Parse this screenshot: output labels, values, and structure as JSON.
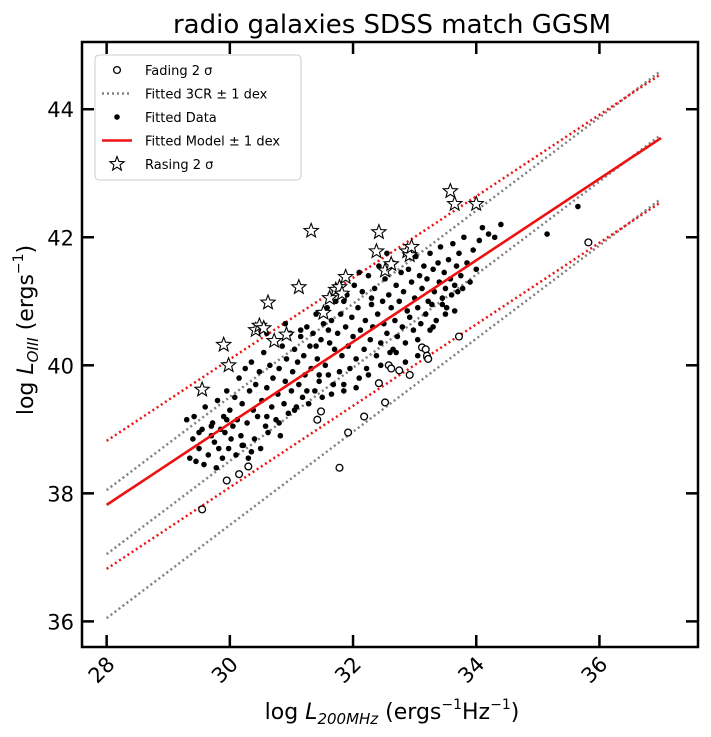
{
  "chart_data": {
    "type": "scatter",
    "title": "radio galaxies SDSS match GGSM",
    "xlabel": {
      "prefix": "log ",
      "symbol": "L",
      "subscript": "200MHz",
      "units": " (ergs",
      "exp1": "−1",
      "mid": "Hz",
      "exp2": "−1",
      "close": ")"
    },
    "ylabel": {
      "prefix": "log ",
      "symbol": "L",
      "subscript": "OIII",
      "units": " (ergs",
      "exp1": "−1",
      "close": ")"
    },
    "xlim": [
      27.6,
      37.6
    ],
    "ylim": [
      35.6,
      45.05
    ],
    "xticks": [
      28,
      30,
      32,
      34,
      36
    ],
    "yticks": [
      36,
      38,
      40,
      42,
      44
    ],
    "legend": {
      "position": "top-left",
      "entries": [
        {
          "label": "Fading 2 σ",
          "marker": "open-circle"
        },
        {
          "label": "Fitted 3CR ± 1 dex",
          "marker": "gray-dotted-line"
        },
        {
          "label": "Fitted Data",
          "marker": "filled-dot"
        },
        {
          "label": "Fitted Model ± 1 dex",
          "marker": "red-line"
        },
        {
          "label": "Rasing 2 σ",
          "marker": "star"
        }
      ]
    },
    "colors": {
      "model": "#ee1111",
      "cr3": "#808080",
      "points": "#000000"
    },
    "lines": {
      "model": {
        "x": [
          28,
          37
        ],
        "y": [
          37.82,
          43.55
        ],
        "offset": 1
      },
      "cr3": {
        "x": [
          28,
          37
        ],
        "y": [
          37.05,
          43.6
        ],
        "offset": 1
      }
    },
    "fading": [
      [
        29.55,
        37.75
      ],
      [
        29.95,
        38.2
      ],
      [
        30.15,
        38.3
      ],
      [
        30.3,
        38.42
      ],
      [
        31.42,
        39.15
      ],
      [
        31.48,
        39.28
      ],
      [
        31.78,
        38.4
      ],
      [
        31.92,
        38.95
      ],
      [
        32.18,
        39.2
      ],
      [
        32.42,
        39.72
      ],
      [
        32.52,
        39.42
      ],
      [
        32.58,
        40.0
      ],
      [
        32.62,
        39.95
      ],
      [
        32.75,
        39.92
      ],
      [
        32.92,
        39.85
      ],
      [
        33.12,
        40.28
      ],
      [
        33.18,
        40.25
      ],
      [
        33.2,
        40.15
      ],
      [
        33.22,
        40.1
      ],
      [
        33.72,
        40.45
      ],
      [
        35.82,
        41.92
      ]
    ],
    "rising": [
      [
        29.55,
        39.62
      ],
      [
        29.9,
        40.32
      ],
      [
        29.98,
        40.0
      ],
      [
        30.42,
        40.55
      ],
      [
        30.48,
        40.62
      ],
      [
        30.55,
        40.58
      ],
      [
        30.62,
        40.98
      ],
      [
        30.72,
        40.38
      ],
      [
        30.92,
        40.48
      ],
      [
        31.12,
        41.22
      ],
      [
        31.32,
        42.1
      ],
      [
        31.52,
        40.82
      ],
      [
        31.62,
        41.05
      ],
      [
        31.72,
        41.18
      ],
      [
        31.78,
        41.22
      ],
      [
        31.82,
        41.12
      ],
      [
        31.88,
        41.38
      ],
      [
        32.38,
        41.78
      ],
      [
        32.42,
        42.08
      ],
      [
        32.52,
        41.48
      ],
      [
        32.62,
        41.58
      ],
      [
        32.88,
        41.78
      ],
      [
        32.92,
        41.72
      ],
      [
        32.95,
        41.85
      ],
      [
        33.58,
        42.72
      ],
      [
        33.65,
        42.52
      ],
      [
        34.0,
        42.52
      ]
    ],
    "fitted": [
      [
        29.3,
        39.15
      ],
      [
        29.35,
        38.55
      ],
      [
        29.4,
        38.85
      ],
      [
        29.42,
        39.2
      ],
      [
        29.45,
        38.5
      ],
      [
        29.5,
        38.95
      ],
      [
        29.55,
        39.0
      ],
      [
        29.58,
        38.45
      ],
      [
        29.6,
        39.35
      ],
      [
        29.65,
        38.6
      ],
      [
        29.7,
        38.9
      ],
      [
        29.72,
        39.1
      ],
      [
        29.75,
        38.8
      ],
      [
        29.78,
        38.4
      ],
      [
        29.8,
        39.45
      ],
      [
        29.82,
        38.7
      ],
      [
        29.85,
        39.0
      ],
      [
        29.88,
        38.55
      ],
      [
        29.9,
        39.2
      ],
      [
        29.92,
        38.95
      ],
      [
        29.95,
        39.6
      ],
      [
        29.98,
        38.7
      ],
      [
        30.0,
        39.3
      ],
      [
        30.02,
        38.85
      ],
      [
        30.05,
        39.05
      ],
      [
        30.08,
        39.5
      ],
      [
        30.1,
        38.6
      ],
      [
        30.12,
        39.15
      ],
      [
        30.15,
        39.8
      ],
      [
        30.18,
        38.9
      ],
      [
        30.2,
        39.4
      ],
      [
        30.22,
        38.75
      ],
      [
        30.25,
        39.95
      ],
      [
        30.28,
        39.1
      ],
      [
        30.3,
        38.55
      ],
      [
        30.32,
        39.6
      ],
      [
        30.35,
        40.05
      ],
      [
        30.38,
        39.3
      ],
      [
        30.4,
        38.85
      ],
      [
        30.42,
        39.7
      ],
      [
        30.45,
        39.2
      ],
      [
        30.48,
        39.9
      ],
      [
        30.5,
        38.7
      ],
      [
        30.52,
        39.45
      ],
      [
        30.55,
        40.2
      ],
      [
        30.58,
        39.05
      ],
      [
        30.6,
        39.65
      ],
      [
        30.62,
        38.95
      ],
      [
        30.65,
        40.0
      ],
      [
        30.68,
        39.35
      ],
      [
        30.7,
        39.8
      ],
      [
        30.72,
        40.4
      ],
      [
        30.75,
        39.15
      ],
      [
        30.78,
        39.55
      ],
      [
        30.8,
        39.95
      ],
      [
        30.82,
        38.9
      ],
      [
        30.85,
        40.3
      ],
      [
        30.88,
        39.4
      ],
      [
        30.9,
        39.75
      ],
      [
        30.92,
        40.1
      ],
      [
        30.95,
        39.25
      ],
      [
        30.98,
        40.5
      ],
      [
        31.0,
        39.6
      ],
      [
        31.02,
        39.9
      ],
      [
        31.05,
        40.25
      ],
      [
        31.08,
        39.35
      ],
      [
        31.1,
        40.05
      ],
      [
        31.12,
        39.7
      ],
      [
        31.15,
        40.45
      ],
      [
        31.18,
        39.5
      ],
      [
        31.2,
        40.15
      ],
      [
        31.22,
        39.85
      ],
      [
        31.25,
        40.6
      ],
      [
        31.28,
        39.4
      ],
      [
        31.3,
        40.3
      ],
      [
        31.32,
        39.95
      ],
      [
        31.35,
        40.5
      ],
      [
        31.38,
        39.6
      ],
      [
        31.4,
        40.8
      ],
      [
        31.42,
        40.1
      ],
      [
        31.45,
        39.75
      ],
      [
        31.48,
        40.4
      ],
      [
        31.5,
        39.5
      ],
      [
        31.52,
        40.65
      ],
      [
        31.55,
        40.0
      ],
      [
        31.58,
        40.9
      ],
      [
        31.6,
        39.85
      ],
      [
        31.62,
        40.35
      ],
      [
        31.65,
        40.7
      ],
      [
        31.68,
        39.7
      ],
      [
        31.7,
        40.25
      ],
      [
        31.72,
        41.0
      ],
      [
        31.75,
        40.5
      ],
      [
        31.78,
        39.9
      ],
      [
        31.8,
        40.8
      ],
      [
        31.82,
        40.15
      ],
      [
        31.85,
        39.6
      ],
      [
        31.88,
        40.6
      ],
      [
        31.9,
        41.1
      ],
      [
        31.92,
        40.3
      ],
      [
        31.95,
        39.95
      ],
      [
        31.98,
        40.75
      ],
      [
        32.0,
        40.45
      ],
      [
        32.02,
        41.25
      ],
      [
        32.05,
        40.1
      ],
      [
        32.08,
        40.9
      ],
      [
        32.1,
        39.8
      ],
      [
        32.12,
        40.55
      ],
      [
        32.15,
        41.15
      ],
      [
        32.18,
        40.25
      ],
      [
        32.2,
        40.7
      ],
      [
        32.22,
        39.95
      ],
      [
        32.25,
        41.4
      ],
      [
        32.28,
        40.4
      ],
      [
        32.3,
        40.95
      ],
      [
        32.32,
        40.6
      ],
      [
        32.35,
        41.2
      ],
      [
        32.38,
        40.15
      ],
      [
        32.4,
        40.8
      ],
      [
        32.42,
        41.55
      ],
      [
        32.45,
        40.35
      ],
      [
        32.48,
        41.0
      ],
      [
        32.5,
        40.65
      ],
      [
        32.52,
        41.35
      ],
      [
        32.55,
        40.5
      ],
      [
        32.58,
        41.1
      ],
      [
        32.6,
        40.2
      ],
      [
        32.62,
        40.9
      ],
      [
        32.65,
        41.6
      ],
      [
        32.68,
        40.7
      ],
      [
        32.7,
        41.25
      ],
      [
        32.72,
        40.45
      ],
      [
        32.75,
        41.0
      ],
      [
        32.78,
        41.45
      ],
      [
        32.8,
        40.6
      ],
      [
        32.82,
        41.15
      ],
      [
        32.85,
        40.35
      ],
      [
        32.88,
        40.85
      ],
      [
        32.9,
        41.5
      ],
      [
        32.92,
        40.75
      ],
      [
        32.95,
        41.3
      ],
      [
        32.98,
        40.55
      ],
      [
        33.0,
        41.05
      ],
      [
        33.02,
        41.7
      ],
      [
        33.05,
        40.9
      ],
      [
        33.08,
        41.4
      ],
      [
        33.1,
        40.65
      ],
      [
        33.12,
        41.2
      ],
      [
        33.15,
        41.55
      ],
      [
        33.18,
        40.8
      ],
      [
        33.2,
        41.35
      ],
      [
        33.22,
        41.0
      ],
      [
        33.25,
        41.75
      ],
      [
        33.28,
        40.95
      ],
      [
        33.3,
        41.5
      ],
      [
        33.32,
        41.15
      ],
      [
        33.35,
        40.7
      ],
      [
        33.38,
        41.6
      ],
      [
        33.4,
        41.3
      ],
      [
        33.42,
        41.85
      ],
      [
        33.45,
        41.05
      ],
      [
        33.48,
        41.45
      ],
      [
        33.5,
        41.2
      ],
      [
        33.52,
        40.9
      ],
      [
        33.55,
        41.65
      ],
      [
        33.58,
        41.35
      ],
      [
        33.6,
        41.1
      ],
      [
        33.62,
        41.9
      ],
      [
        33.65,
        41.25
      ],
      [
        33.68,
        41.55
      ],
      [
        33.7,
        41.15
      ],
      [
        33.72,
        41.75
      ],
      [
        33.75,
        41.4
      ],
      [
        33.78,
        41.2
      ],
      [
        33.8,
        42.0
      ],
      [
        33.85,
        41.6
      ],
      [
        33.9,
        41.3
      ],
      [
        33.95,
        41.8
      ],
      [
        34.0,
        41.5
      ],
      [
        34.1,
        42.15
      ],
      [
        34.2,
        42.05
      ],
      [
        34.3,
        42.0
      ],
      [
        34.4,
        42.2
      ],
      [
        35.15,
        42.05
      ],
      [
        35.65,
        42.48
      ],
      [
        30.6,
        40.5
      ],
      [
        30.9,
        40.65
      ],
      [
        31.15,
        40.55
      ],
      [
        31.4,
        40.3
      ],
      [
        31.6,
        40.55
      ],
      [
        31.85,
        41.0
      ],
      [
        32.1,
        41.45
      ],
      [
        32.3,
        41.05
      ],
      [
        32.55,
        41.75
      ],
      [
        32.7,
        40.2
      ],
      [
        33.05,
        40.4
      ],
      [
        33.25,
        40.55
      ],
      [
        33.45,
        40.95
      ],
      [
        33.65,
        40.85
      ],
      [
        34.05,
        41.95
      ],
      [
        29.5,
        38.7
      ],
      [
        29.7,
        39.05
      ],
      [
        29.95,
        39.15
      ],
      [
        30.2,
        38.75
      ],
      [
        30.35,
        38.65
      ],
      [
        30.6,
        39.2
      ],
      [
        30.8,
        39.1
      ],
      [
        31.05,
        39.3
      ],
      [
        31.25,
        39.6
      ],
      [
        31.45,
        39.85
      ],
      [
        31.65,
        39.55
      ],
      [
        31.85,
        39.7
      ],
      [
        32.05,
        39.65
      ],
      [
        32.25,
        39.85
      ],
      [
        32.45,
        40.0
      ],
      [
        32.65,
        40.25
      ],
      [
        32.85,
        40.05
      ],
      [
        33.05,
        40.15
      ],
      [
        33.3,
        40.6
      ],
      [
        33.5,
        40.8
      ]
    ]
  }
}
